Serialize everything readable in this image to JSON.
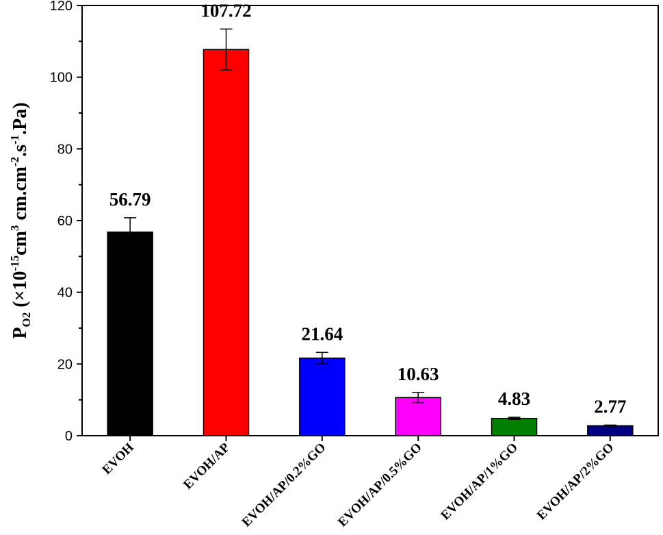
{
  "chart_data": {
    "type": "bar",
    "categories": [
      "EVOH",
      "EVOH/AP",
      "EVOH/AP/0.2%GO",
      "EVOH/AP/0.5%GO",
      "EVOH/AP/1%GO",
      "EVOH/AP/2%GO"
    ],
    "values": [
      56.79,
      107.72,
      21.64,
      10.63,
      4.83,
      2.77
    ],
    "errors": [
      4.0,
      5.7,
      1.6,
      1.4,
      0.3,
      0.2
    ],
    "data_labels": [
      "56.79",
      "107.72",
      "21.64",
      "10.63",
      "4.83",
      "2.77"
    ],
    "colors": [
      "#000000",
      "#ff0000",
      "#0000ff",
      "#ff00ff",
      "#007f00",
      "#000080"
    ],
    "ylabel_parts": {
      "p": "P",
      "p_sub": "O2",
      "open": " (×10",
      "exp1": "-15",
      "mid1": "cm",
      "exp2": "3",
      "mid2": " cm.cm",
      "exp3": "-2",
      "mid3": ".s",
      "exp4": "-1",
      "end": ".Pa)"
    },
    "ylim": [
      0,
      120
    ],
    "yticks": [
      0,
      20,
      40,
      60,
      80,
      100,
      120
    ],
    "grid": false,
    "legend": "none"
  }
}
